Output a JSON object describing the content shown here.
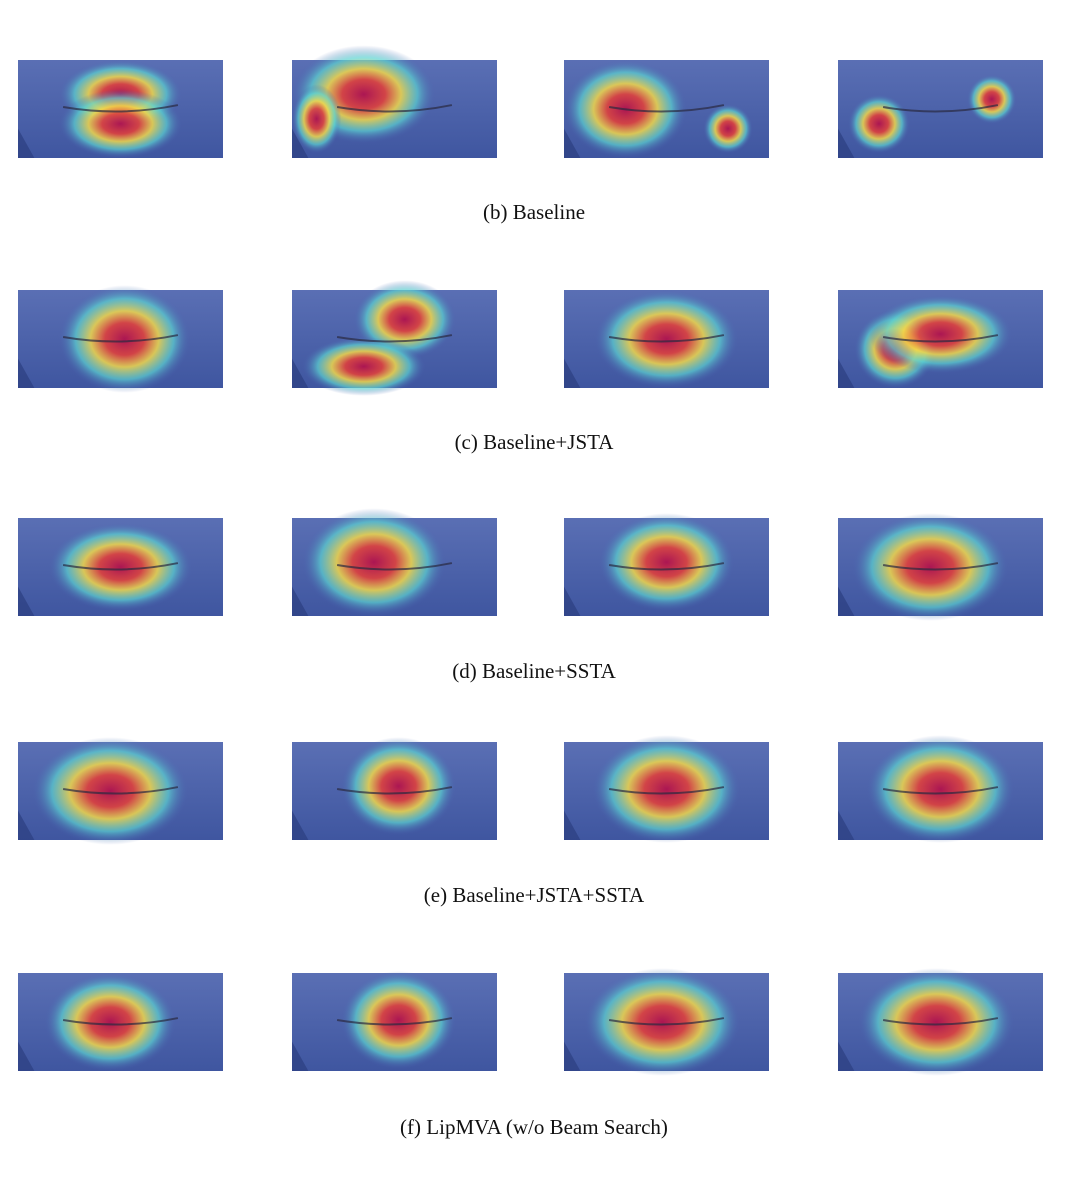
{
  "rows": [
    {
      "caption": "(b) Baseline"
    },
    {
      "caption": "(c) Baseline+JSTA"
    },
    {
      "caption": "(d) Baseline+SSTA"
    },
    {
      "caption": "(e) Baseline+JSTA+SSTA"
    },
    {
      "caption": "(f) LipMVA (w/o Beam Search)"
    }
  ]
}
